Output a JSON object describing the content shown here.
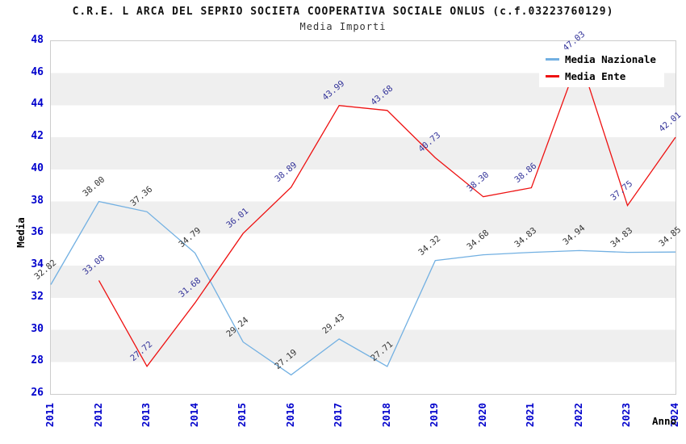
{
  "chart_data": {
    "type": "line",
    "title": "C.R.E. L ARCA DEL SEPRIO SOCIETA COOPERATIVA SOCIALE ONLUS (c.f.03223760129)",
    "subtitle": "Media Importi",
    "xlabel": "Anno",
    "ylabel": "Media",
    "ylim": [
      26,
      48
    ],
    "ytick_step": 2,
    "grid": "alternating-horizontal-bands",
    "legend_position": "top-right",
    "categories": [
      "2011",
      "2012",
      "2013",
      "2014",
      "2015",
      "2016",
      "2017",
      "2018",
      "2019",
      "2020",
      "2021",
      "2022",
      "2023",
      "2024"
    ],
    "series": [
      {
        "name": "Media Nazionale",
        "color": "#72b0e2",
        "label_color": "#333333",
        "values": [
          32.82,
          38.0,
          37.36,
          34.79,
          29.24,
          27.19,
          29.43,
          27.71,
          34.32,
          34.68,
          34.83,
          34.94,
          34.83,
          34.85
        ]
      },
      {
        "name": "Media Ente",
        "color": "#ee1111",
        "label_color": "#333399",
        "values": [
          null,
          33.08,
          27.72,
          31.68,
          36.01,
          38.89,
          43.99,
          43.68,
          40.73,
          38.3,
          38.86,
          47.03,
          37.75,
          42.01
        ]
      }
    ]
  },
  "colors": {
    "tick_label": "#0000cc",
    "band_gray": "#efefef",
    "plot_border": "#cccccc",
    "background": "#ffffff"
  }
}
